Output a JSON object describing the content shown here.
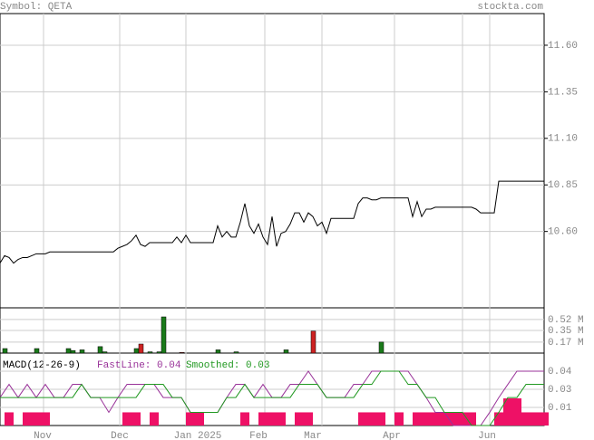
{
  "chart_data": {
    "type": "line",
    "symbol": "Symbol: QETA",
    "site": "stockta.com",
    "month_labels": [
      "Nov",
      "Dec",
      "Jan 2025",
      "Feb",
      "Mar",
      "Apr",
      "Jun"
    ],
    "color": "#000000",
    "grid": true,
    "ylim": [
      10.19,
      11.77
    ],
    "yticks": [
      {
        "value": 11.6,
        "label": "11.60"
      },
      {
        "value": 11.35,
        "label": "11.35"
      },
      {
        "value": 11.1,
        "label": "11.10"
      },
      {
        "value": 10.85,
        "label": "10.85"
      },
      {
        "value": 10.6,
        "label": "10.60"
      }
    ],
    "values": [
      10.43,
      10.47,
      10.46,
      10.43,
      10.45,
      10.46,
      10.46,
      10.47,
      10.48,
      10.48,
      10.48,
      10.49,
      10.49,
      10.49,
      10.49,
      10.49,
      10.49,
      10.49,
      10.49,
      10.49,
      10.49,
      10.49,
      10.49,
      10.49,
      10.49,
      10.49,
      10.51,
      10.52,
      10.53,
      10.55,
      10.58,
      10.53,
      10.52,
      10.54,
      10.54,
      10.54,
      10.54,
      10.54,
      10.54,
      10.57,
      10.54,
      10.58,
      10.54,
      10.54,
      10.54,
      10.54,
      10.54,
      10.54,
      10.63,
      10.57,
      10.6,
      10.57,
      10.57,
      10.65,
      10.75,
      10.63,
      10.59,
      10.64,
      10.57,
      10.53,
      10.68,
      10.52,
      10.59,
      10.6,
      10.64,
      10.7,
      10.7,
      10.65,
      10.7,
      10.68,
      10.63,
      10.65,
      10.59,
      10.67,
      10.67,
      10.67,
      10.67,
      10.67,
      10.67,
      10.75,
      10.78,
      10.78,
      10.77,
      10.77,
      10.78,
      10.78,
      10.78,
      10.78,
      10.78,
      10.78,
      10.78,
      10.68,
      10.76,
      10.68,
      10.72,
      10.72,
      10.73,
      10.73,
      10.73,
      10.73,
      10.73,
      10.73,
      10.73,
      10.73,
      10.73,
      10.72,
      10.7,
      10.7,
      10.7,
      10.7,
      10.87,
      10.87,
      10.87,
      10.87,
      10.87,
      10.87,
      10.87,
      10.87,
      10.87,
      10.87,
      10.87
    ],
    "volume": {
      "up_color": "#1a7a1a",
      "down_color": "#cc2222",
      "ylim": [
        0,
        0.7
      ],
      "yticks": [
        {
          "value": 0.52,
          "label": "0.52 M"
        },
        {
          "value": 0.35,
          "label": "0.35 M"
        },
        {
          "value": 0.17,
          "label": "0.17 M"
        }
      ],
      "values": [
        0,
        0.07,
        0,
        0,
        0,
        0,
        0,
        0,
        0.07,
        0,
        0,
        0,
        0,
        0,
        0,
        0.07,
        0.04,
        0,
        0.05,
        0,
        0,
        0,
        0.1,
        0.02,
        0,
        0,
        0,
        0,
        0,
        0,
        0.07,
        0.14,
        0,
        0.02,
        0,
        0.02,
        0.56,
        0,
        0,
        0,
        0.01,
        0,
        0,
        0,
        0,
        0,
        0,
        0,
        0.05,
        0,
        0,
        0,
        0.02,
        0,
        0,
        0,
        0,
        0,
        0,
        0,
        0,
        0,
        0,
        0.05,
        0,
        0,
        0,
        0,
        0,
        0.34,
        0,
        0,
        0,
        0,
        0,
        0,
        0,
        0,
        0,
        0,
        0,
        0,
        0,
        0,
        0.17,
        0,
        0,
        0,
        0,
        0,
        0,
        0,
        0,
        0,
        0,
        0,
        0,
        0,
        0,
        0,
        0,
        0,
        0,
        0,
        0,
        0,
        0,
        0,
        0,
        0,
        0,
        0,
        0,
        0,
        0,
        0,
        0,
        0,
        0,
        0,
        0
      ]
    },
    "macd": {
      "title": "MACD(12-26-9)",
      "ylim": [
        0.003,
        0.047
      ],
      "yticks": [
        {
          "value": 0.036,
          "label": "0.04"
        },
        {
          "value": 0.025,
          "label": "0.03"
        },
        {
          "value": 0.014,
          "label": "0.01"
        }
      ],
      "histogram_color": "#ee1166",
      "histogram": [
        null,
        0.011,
        null,
        0.011,
        0.011,
        0.011,
        null,
        null,
        null,
        null,
        null,
        null,
        null,
        null,
        0.011,
        0.011,
        null,
        0.011,
        null,
        null,
        null,
        0.011,
        0.011,
        null,
        null,
        null,
        null,
        0.011,
        null,
        0.011,
        0.011,
        0.011,
        null,
        0.011,
        0.011,
        null,
        null,
        null,
        null,
        null,
        0.011,
        0.011,
        0.011,
        null,
        0.011,
        null,
        0.011,
        0.011,
        0.011,
        0.011,
        0.011,
        0.011,
        0.011,
        null,
        null,
        0.011,
        0.0195,
        0.0195,
        0.011,
        0.011,
        0.011
      ],
      "series": [
        {
          "name": "FastLine: 0.04",
          "color": "#993399",
          "values": [
            0.02,
            0.028,
            0.02,
            0.028,
            0.02,
            0.028,
            0.02,
            0.02,
            0.028,
            0.028,
            0.02,
            0.02,
            0.011,
            0.02,
            0.028,
            0.028,
            0.028,
            0.028,
            0.02,
            0.02,
            0.02,
            0.011,
            0.011,
            0.011,
            0.011,
            0.02,
            0.028,
            0.028,
            0.02,
            0.028,
            0.02,
            0.02,
            0.028,
            0.028,
            0.036,
            0.028,
            0.02,
            0.02,
            0.02,
            0.028,
            0.028,
            0.036,
            0.036,
            0.036,
            0.036,
            0.036,
            0.028,
            0.02,
            0.011,
            0.011,
            0.003,
            0.003,
            0.003,
            0.003,
            0.011,
            0.02,
            0.028,
            0.036,
            0.036,
            0.036,
            0.036
          ]
        },
        {
          "name": "Smoothed: 0.03",
          "color": "#229922",
          "values": [
            0.02,
            0.02,
            0.02,
            0.02,
            0.02,
            0.02,
            0.02,
            0.02,
            0.02,
            0.028,
            0.02,
            0.02,
            0.02,
            0.02,
            0.02,
            0.02,
            0.028,
            0.028,
            0.028,
            0.02,
            0.02,
            0.011,
            0.011,
            0.011,
            0.011,
            0.02,
            0.02,
            0.028,
            0.02,
            0.02,
            0.02,
            0.02,
            0.02,
            0.028,
            0.028,
            0.028,
            0.02,
            0.02,
            0.02,
            0.02,
            0.028,
            0.028,
            0.036,
            0.036,
            0.036,
            0.028,
            0.028,
            0.02,
            0.02,
            0.011,
            0.011,
            0.011,
            0.003,
            0.003,
            0.003,
            0.011,
            0.02,
            0.02,
            0.028,
            0.028,
            0.028
          ]
        }
      ]
    }
  }
}
